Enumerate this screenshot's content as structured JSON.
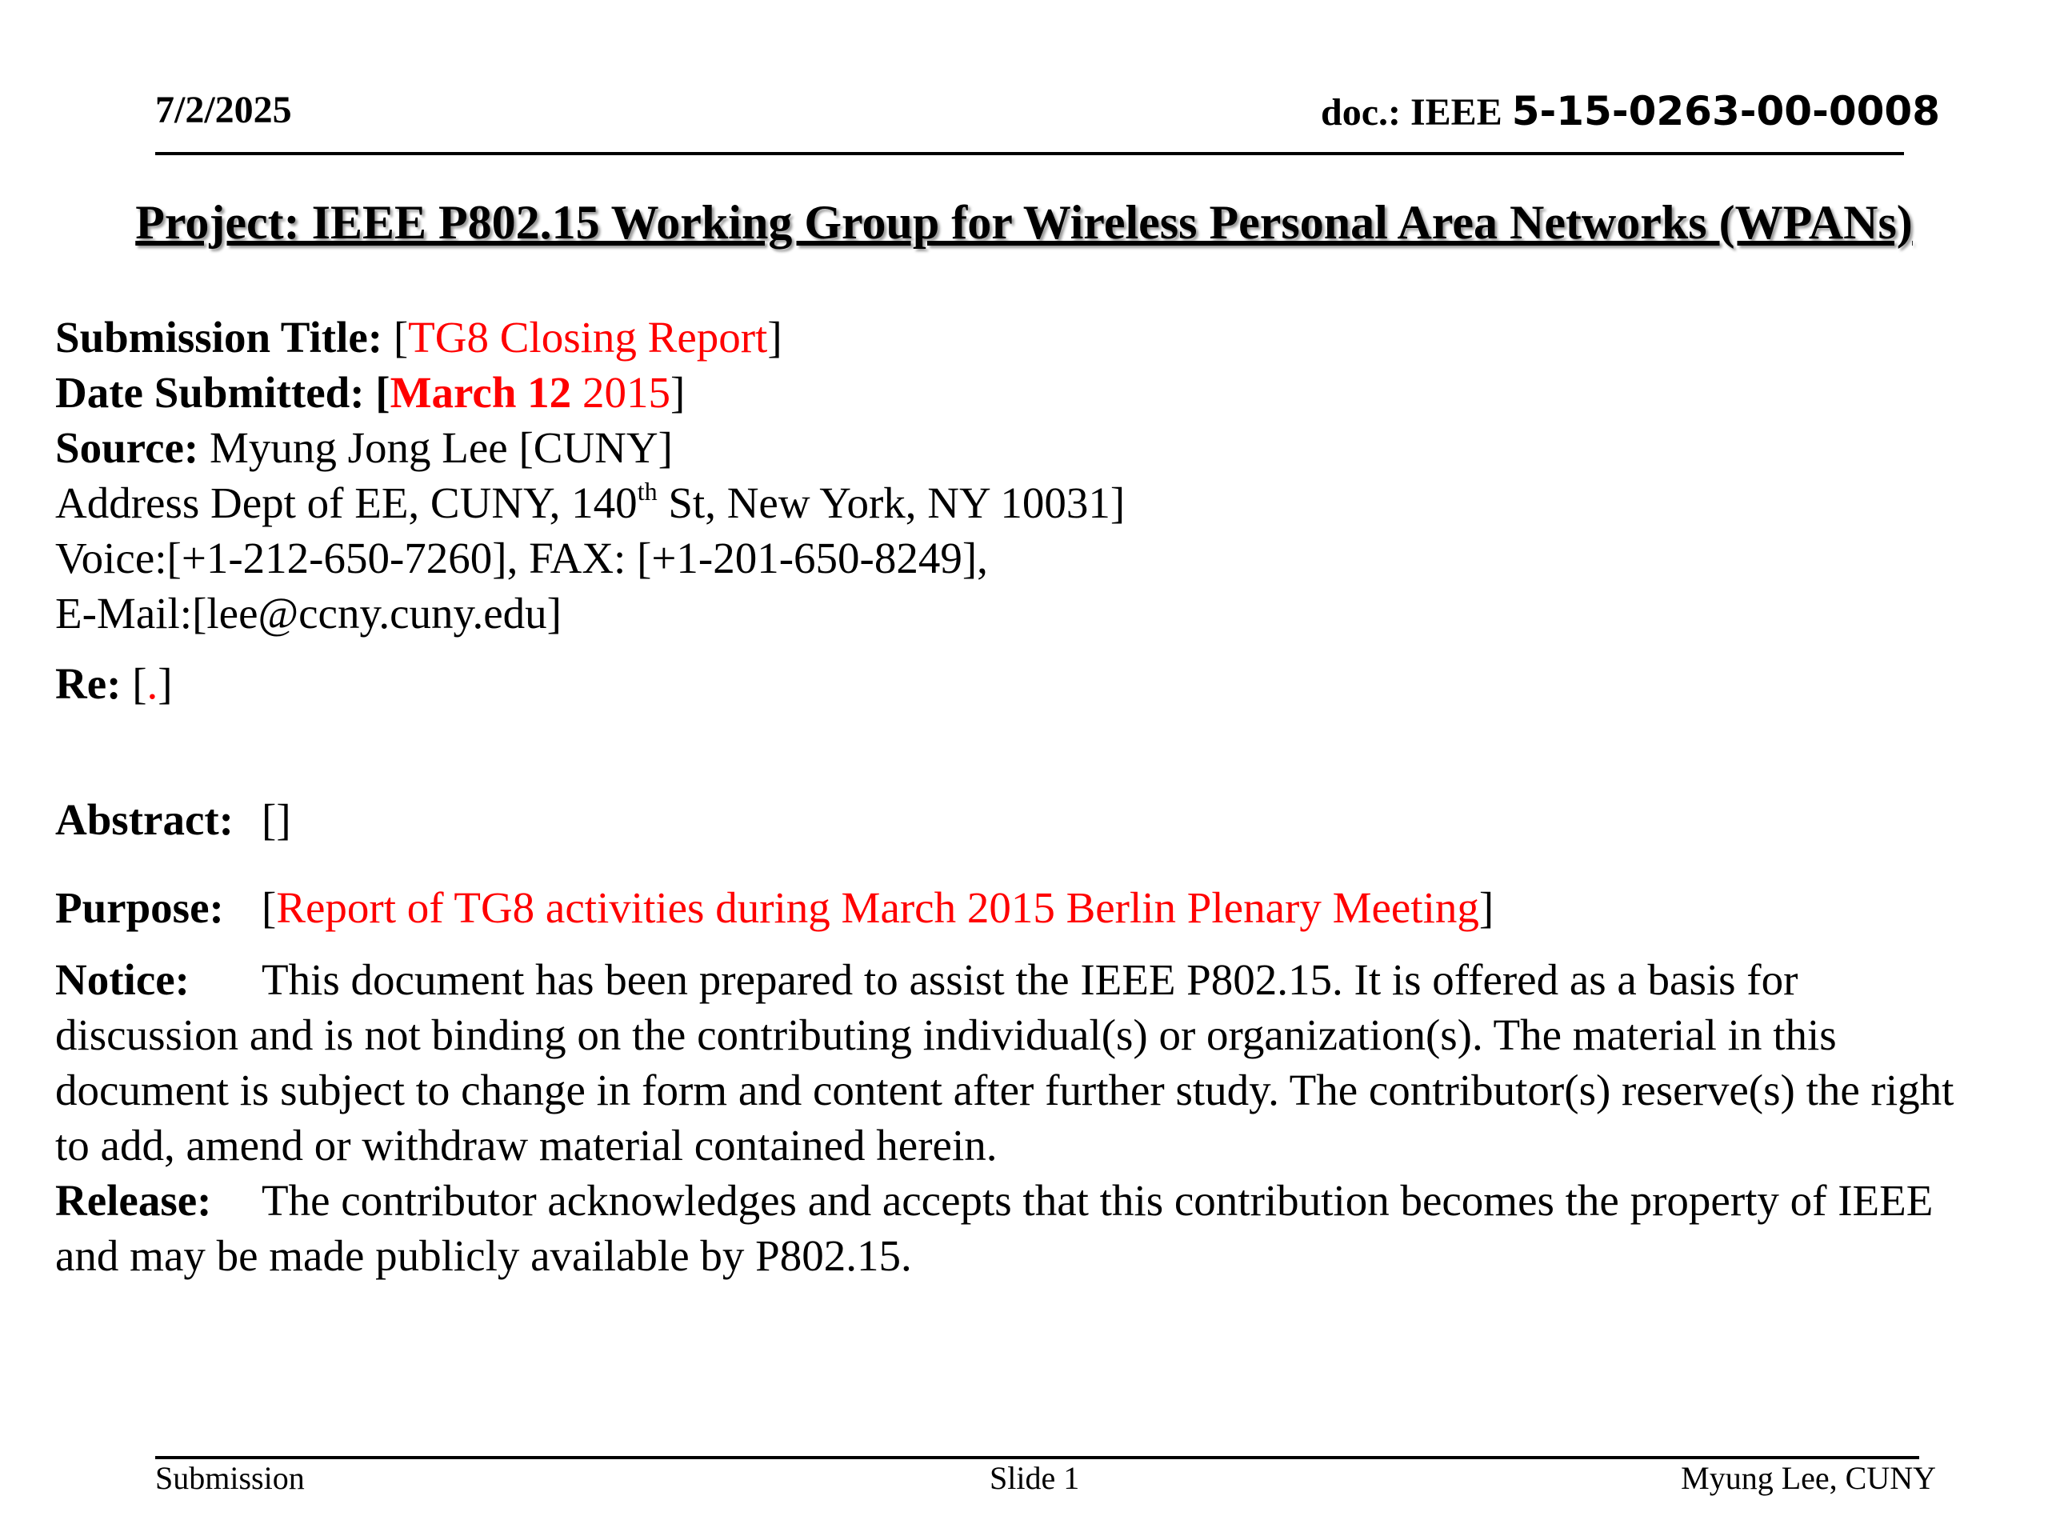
{
  "header": {
    "date": "7/2/2025",
    "doc_prefix": "doc.: IEEE ",
    "doc_number": "5-15-0263-00-0008"
  },
  "project_title": "Project: IEEE P802.15 Working Group for Wireless Personal Area Networks (WPANs)",
  "fields": {
    "submission_title_label": "Submission Title: ",
    "submission_title_value": "TG8 Closing Report",
    "date_label": "Date Submitted:  ",
    "date_bold": "March 12",
    "date_year": " 2015",
    "source_label": "Source: ",
    "source_value": "Myung Jong Lee [CUNY]",
    "address_pre": "Address Dept of EE, CUNY, 140",
    "address_sup": "th",
    "address_post": " St, New York, NY 10031]",
    "voice": "Voice:[+1-212-650-7260], FAX: [+1-201-650-8249],",
    "email": "E-Mail:[lee@ccny.cuny.edu]",
    "re_label": "Re: ",
    "re_value": ".",
    "abstract_label": "Abstract:",
    "abstract_value": "[]",
    "purpose_label": "Purpose:",
    "purpose_value": "Report of TG8 activities during  March 2015 Berlin Plenary Meeting",
    "notice_label": "Notice:",
    "notice_lines": [
      "This document has been prepared to assist the IEEE P802.15.  It is offered as a basis for",
      "discussion and is not binding on the contributing individual(s) or organization(s). The material in this",
      "document is subject to change in form and content after further study. The contributor(s) reserve(s) the right",
      "to add, amend or withdraw material contained herein."
    ],
    "release_label": "Release:",
    "release_lines": [
      "The contributor acknowledges and accepts that this contribution becomes the property of IEEE",
      "and may be made publicly available by P802.15."
    ]
  },
  "footer": {
    "left": "Submission",
    "center": "Slide 1",
    "right": "Myung Lee, CUNY"
  },
  "colors": {
    "accent_red": "#ff0000"
  }
}
